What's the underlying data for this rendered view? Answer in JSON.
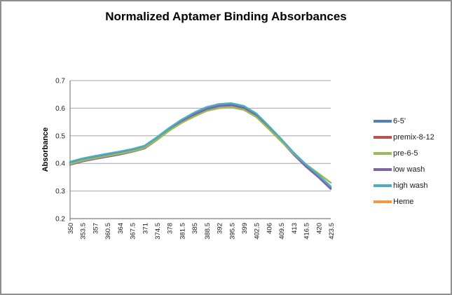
{
  "title": "Normalized Aptamer Binding Absorbances",
  "chart_data": {
    "type": "line",
    "title": "Normalized Aptamer Binding Absorbances",
    "xlabel": "",
    "ylabel": "Absorbance",
    "ylim": [
      0.2,
      0.7
    ],
    "ytick_step": 0.1,
    "yticks": [
      0.2,
      0.3,
      0.4,
      0.5,
      0.6,
      0.7
    ],
    "grid": true,
    "legend_position": "right",
    "x_tick_rotation": 90,
    "categories": [
      350,
      353.5,
      357,
      360.5,
      364,
      367.5,
      371,
      374.5,
      378,
      381.5,
      385,
      388.5,
      392,
      395.5,
      399,
      402.5,
      406,
      409.5,
      413,
      416.5,
      420,
      423.5
    ],
    "series": [
      {
        "name": "6-5'",
        "color": "#4F81BD",
        "values": [
          0.403,
          0.415,
          0.424,
          0.432,
          0.44,
          0.449,
          0.461,
          0.492,
          0.526,
          0.556,
          0.581,
          0.601,
          0.612,
          0.615,
          0.605,
          0.578,
          0.533,
          0.486,
          0.437,
          0.393,
          0.355,
          0.312
        ]
      },
      {
        "name": "premix-8-12",
        "color": "#C0504D",
        "values": [
          0.401,
          0.413,
          0.422,
          0.43,
          0.438,
          0.447,
          0.459,
          0.49,
          0.524,
          0.554,
          0.579,
          0.599,
          0.61,
          0.613,
          0.603,
          0.576,
          0.531,
          0.484,
          0.436,
          0.392,
          0.354,
          0.311
        ]
      },
      {
        "name": "pre-6-5",
        "color": "#9BBB59",
        "values": [
          0.398,
          0.41,
          0.419,
          0.427,
          0.435,
          0.444,
          0.456,
          0.486,
          0.519,
          0.547,
          0.57,
          0.59,
          0.6,
          0.603,
          0.594,
          0.568,
          0.525,
          0.48,
          0.436,
          0.397,
          0.364,
          0.33
        ]
      },
      {
        "name": "low wash",
        "color": "#8064A2",
        "values": [
          0.395,
          0.407,
          0.416,
          0.424,
          0.432,
          0.442,
          0.454,
          0.485,
          0.519,
          0.55,
          0.575,
          0.596,
          0.607,
          0.61,
          0.6,
          0.573,
          0.528,
          0.481,
          0.432,
          0.388,
          0.35,
          0.307
        ]
      },
      {
        "name": "high wash",
        "color": "#4BACC6",
        "values": [
          0.406,
          0.418,
          0.427,
          0.435,
          0.443,
          0.452,
          0.464,
          0.495,
          0.529,
          0.559,
          0.584,
          0.604,
          0.615,
          0.618,
          0.608,
          0.581,
          0.536,
          0.489,
          0.44,
          0.396,
          0.358,
          0.317
        ]
      },
      {
        "name": "Heme",
        "color": "#F79646",
        "values": [
          0.4,
          0.412,
          0.421,
          0.429,
          0.437,
          0.446,
          0.458,
          0.489,
          0.523,
          0.553,
          0.578,
          0.598,
          0.609,
          0.612,
          0.602,
          0.575,
          0.53,
          0.483,
          0.435,
          0.391,
          0.353,
          0.31
        ]
      }
    ],
    "draw_order": [
      5,
      1,
      0,
      3,
      2,
      4
    ]
  },
  "style": {
    "axis_color": "#808080",
    "gridline_color": "#A6A6A6",
    "tick_label_color": "#1a1a1a",
    "frame_border_color": "#8f8f8f"
  }
}
